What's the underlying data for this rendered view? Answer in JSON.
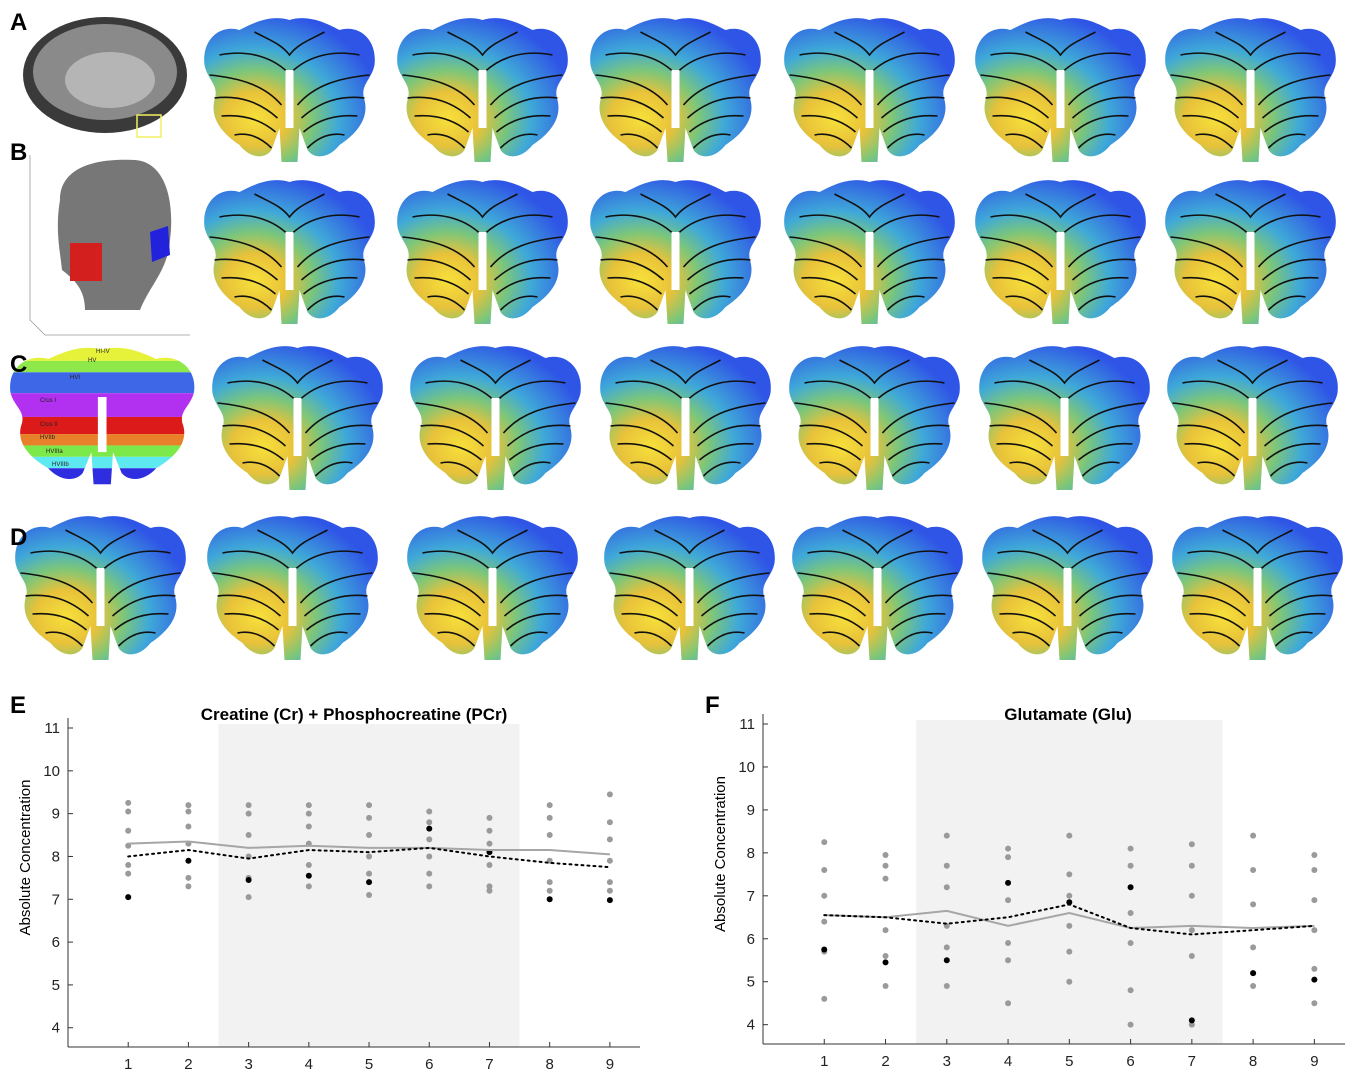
{
  "figure": {
    "panel_labels": [
      "A",
      "B",
      "C",
      "D"
    ],
    "region_labels": [
      "HI-IV",
      "HV",
      "HVI",
      "Crus I",
      "Crus II",
      "HVIIb",
      "HVIIIa",
      "HVIIIb"
    ]
  },
  "chart_data": [
    {
      "type": "line",
      "panel_label": "E",
      "title": "Creatine (Cr) + Phosphocreatine (PCr)",
      "y_label": "Absolute Concentration",
      "x": [
        1,
        2,
        3,
        4,
        5,
        6,
        7,
        8,
        9
      ],
      "xlim": [
        0,
        9.5
      ],
      "ylim": [
        3.55,
        11
      ],
      "yticks": [
        4,
        5,
        6,
        7,
        8,
        9,
        10,
        11
      ],
      "shaded_x": [
        2.5,
        7.5
      ],
      "shade_color": "#f2f2f2",
      "series": [
        {
          "color": "#a6a6a6",
          "style": "solid",
          "values": [
            8.3,
            8.35,
            8.2,
            8.25,
            8.2,
            8.2,
            8.15,
            8.15,
            8.05
          ]
        },
        {
          "color": "#000000",
          "style": "dotted",
          "values": [
            8.0,
            8.15,
            7.95,
            8.15,
            8.1,
            8.2,
            8.0,
            7.85,
            7.75
          ]
        }
      ],
      "scatter": [
        {
          "color": "#9a9a9a",
          "x": [
            1,
            1,
            1,
            1,
            1,
            1,
            2,
            2,
            2,
            2,
            2,
            2,
            3,
            3,
            3,
            3,
            3,
            3,
            4,
            4,
            4,
            4,
            4,
            4,
            5,
            5,
            5,
            5,
            5,
            5,
            6,
            6,
            6,
            6,
            6,
            6,
            7,
            7,
            7,
            7,
            7,
            7,
            8,
            8,
            8,
            8,
            8,
            8,
            9,
            9,
            9,
            9,
            9,
            9
          ],
          "values": [
            9.25,
            9.05,
            8.6,
            8.25,
            7.8,
            7.6,
            9.2,
            9.05,
            8.7,
            8.3,
            7.5,
            7.3,
            9.2,
            9.0,
            8.5,
            8.0,
            7.5,
            7.05,
            9.2,
            9.0,
            8.7,
            8.3,
            7.8,
            7.3,
            9.2,
            8.9,
            8.5,
            8.0,
            7.6,
            7.1,
            9.05,
            8.8,
            8.4,
            8.0,
            7.6,
            7.3,
            8.9,
            8.6,
            8.3,
            7.8,
            7.3,
            7.2,
            9.2,
            8.9,
            8.5,
            7.9,
            7.4,
            7.2,
            9.45,
            8.8,
            8.4,
            7.9,
            7.4,
            7.2
          ]
        },
        {
          "color": "#000000",
          "x": [
            1,
            2,
            3,
            4,
            5,
            6,
            7,
            8,
            9
          ],
          "values": [
            7.05,
            7.9,
            7.45,
            7.55,
            7.4,
            8.65,
            8.1,
            7.0,
            6.98
          ]
        }
      ]
    },
    {
      "type": "line",
      "panel_label": "F",
      "title": "Glutamate (Glu)",
      "y_label": "Absolute Concentration",
      "x": [
        1,
        2,
        3,
        4,
        5,
        6,
        7,
        8,
        9
      ],
      "xlim": [
        0,
        9.5
      ],
      "ylim": [
        3.55,
        11
      ],
      "yticks": [
        4,
        5,
        6,
        7,
        8,
        9,
        10,
        11
      ],
      "shaded_x": [
        2.5,
        7.5
      ],
      "shade_color": "#f2f2f2",
      "series": [
        {
          "color": "#a6a6a6",
          "style": "solid",
          "values": [
            6.55,
            6.5,
            6.65,
            6.3,
            6.6,
            6.25,
            6.3,
            6.25,
            6.3
          ]
        },
        {
          "color": "#000000",
          "style": "dotted",
          "values": [
            6.55,
            6.5,
            6.35,
            6.5,
            6.8,
            6.25,
            6.1,
            6.2,
            6.3
          ]
        }
      ],
      "scatter": [
        {
          "color": "#9a9a9a",
          "x": [
            1,
            1,
            1,
            1,
            1,
            1,
            2,
            2,
            2,
            2,
            2,
            2,
            3,
            3,
            3,
            3,
            3,
            3,
            4,
            4,
            4,
            4,
            4,
            4,
            5,
            5,
            5,
            5,
            5,
            5,
            6,
            6,
            6,
            6,
            6,
            6,
            7,
            7,
            7,
            7,
            7,
            7,
            8,
            8,
            8,
            8,
            8,
            8,
            9,
            9,
            9,
            9,
            9,
            9
          ],
          "values": [
            8.25,
            7.6,
            7.0,
            6.4,
            5.7,
            4.6,
            7.95,
            7.7,
            7.4,
            6.2,
            5.6,
            4.9,
            8.4,
            7.7,
            7.2,
            6.3,
            5.8,
            4.9,
            8.1,
            7.9,
            6.9,
            5.9,
            5.5,
            4.5,
            8.4,
            7.5,
            7.0,
            6.3,
            5.7,
            5.0,
            8.1,
            7.7,
            6.6,
            5.9,
            4.8,
            4.0,
            8.2,
            7.7,
            7.0,
            6.2,
            5.6,
            4.0,
            8.4,
            7.6,
            6.8,
            5.8,
            5.2,
            4.9,
            7.95,
            7.6,
            6.9,
            6.2,
            5.3,
            4.5
          ]
        },
        {
          "color": "#000000",
          "x": [
            1,
            2,
            3,
            4,
            5,
            6,
            7,
            8,
            9
          ],
          "values": [
            5.75,
            5.45,
            5.5,
            7.3,
            6.85,
            7.2,
            4.1,
            5.2,
            5.05
          ]
        }
      ]
    }
  ]
}
